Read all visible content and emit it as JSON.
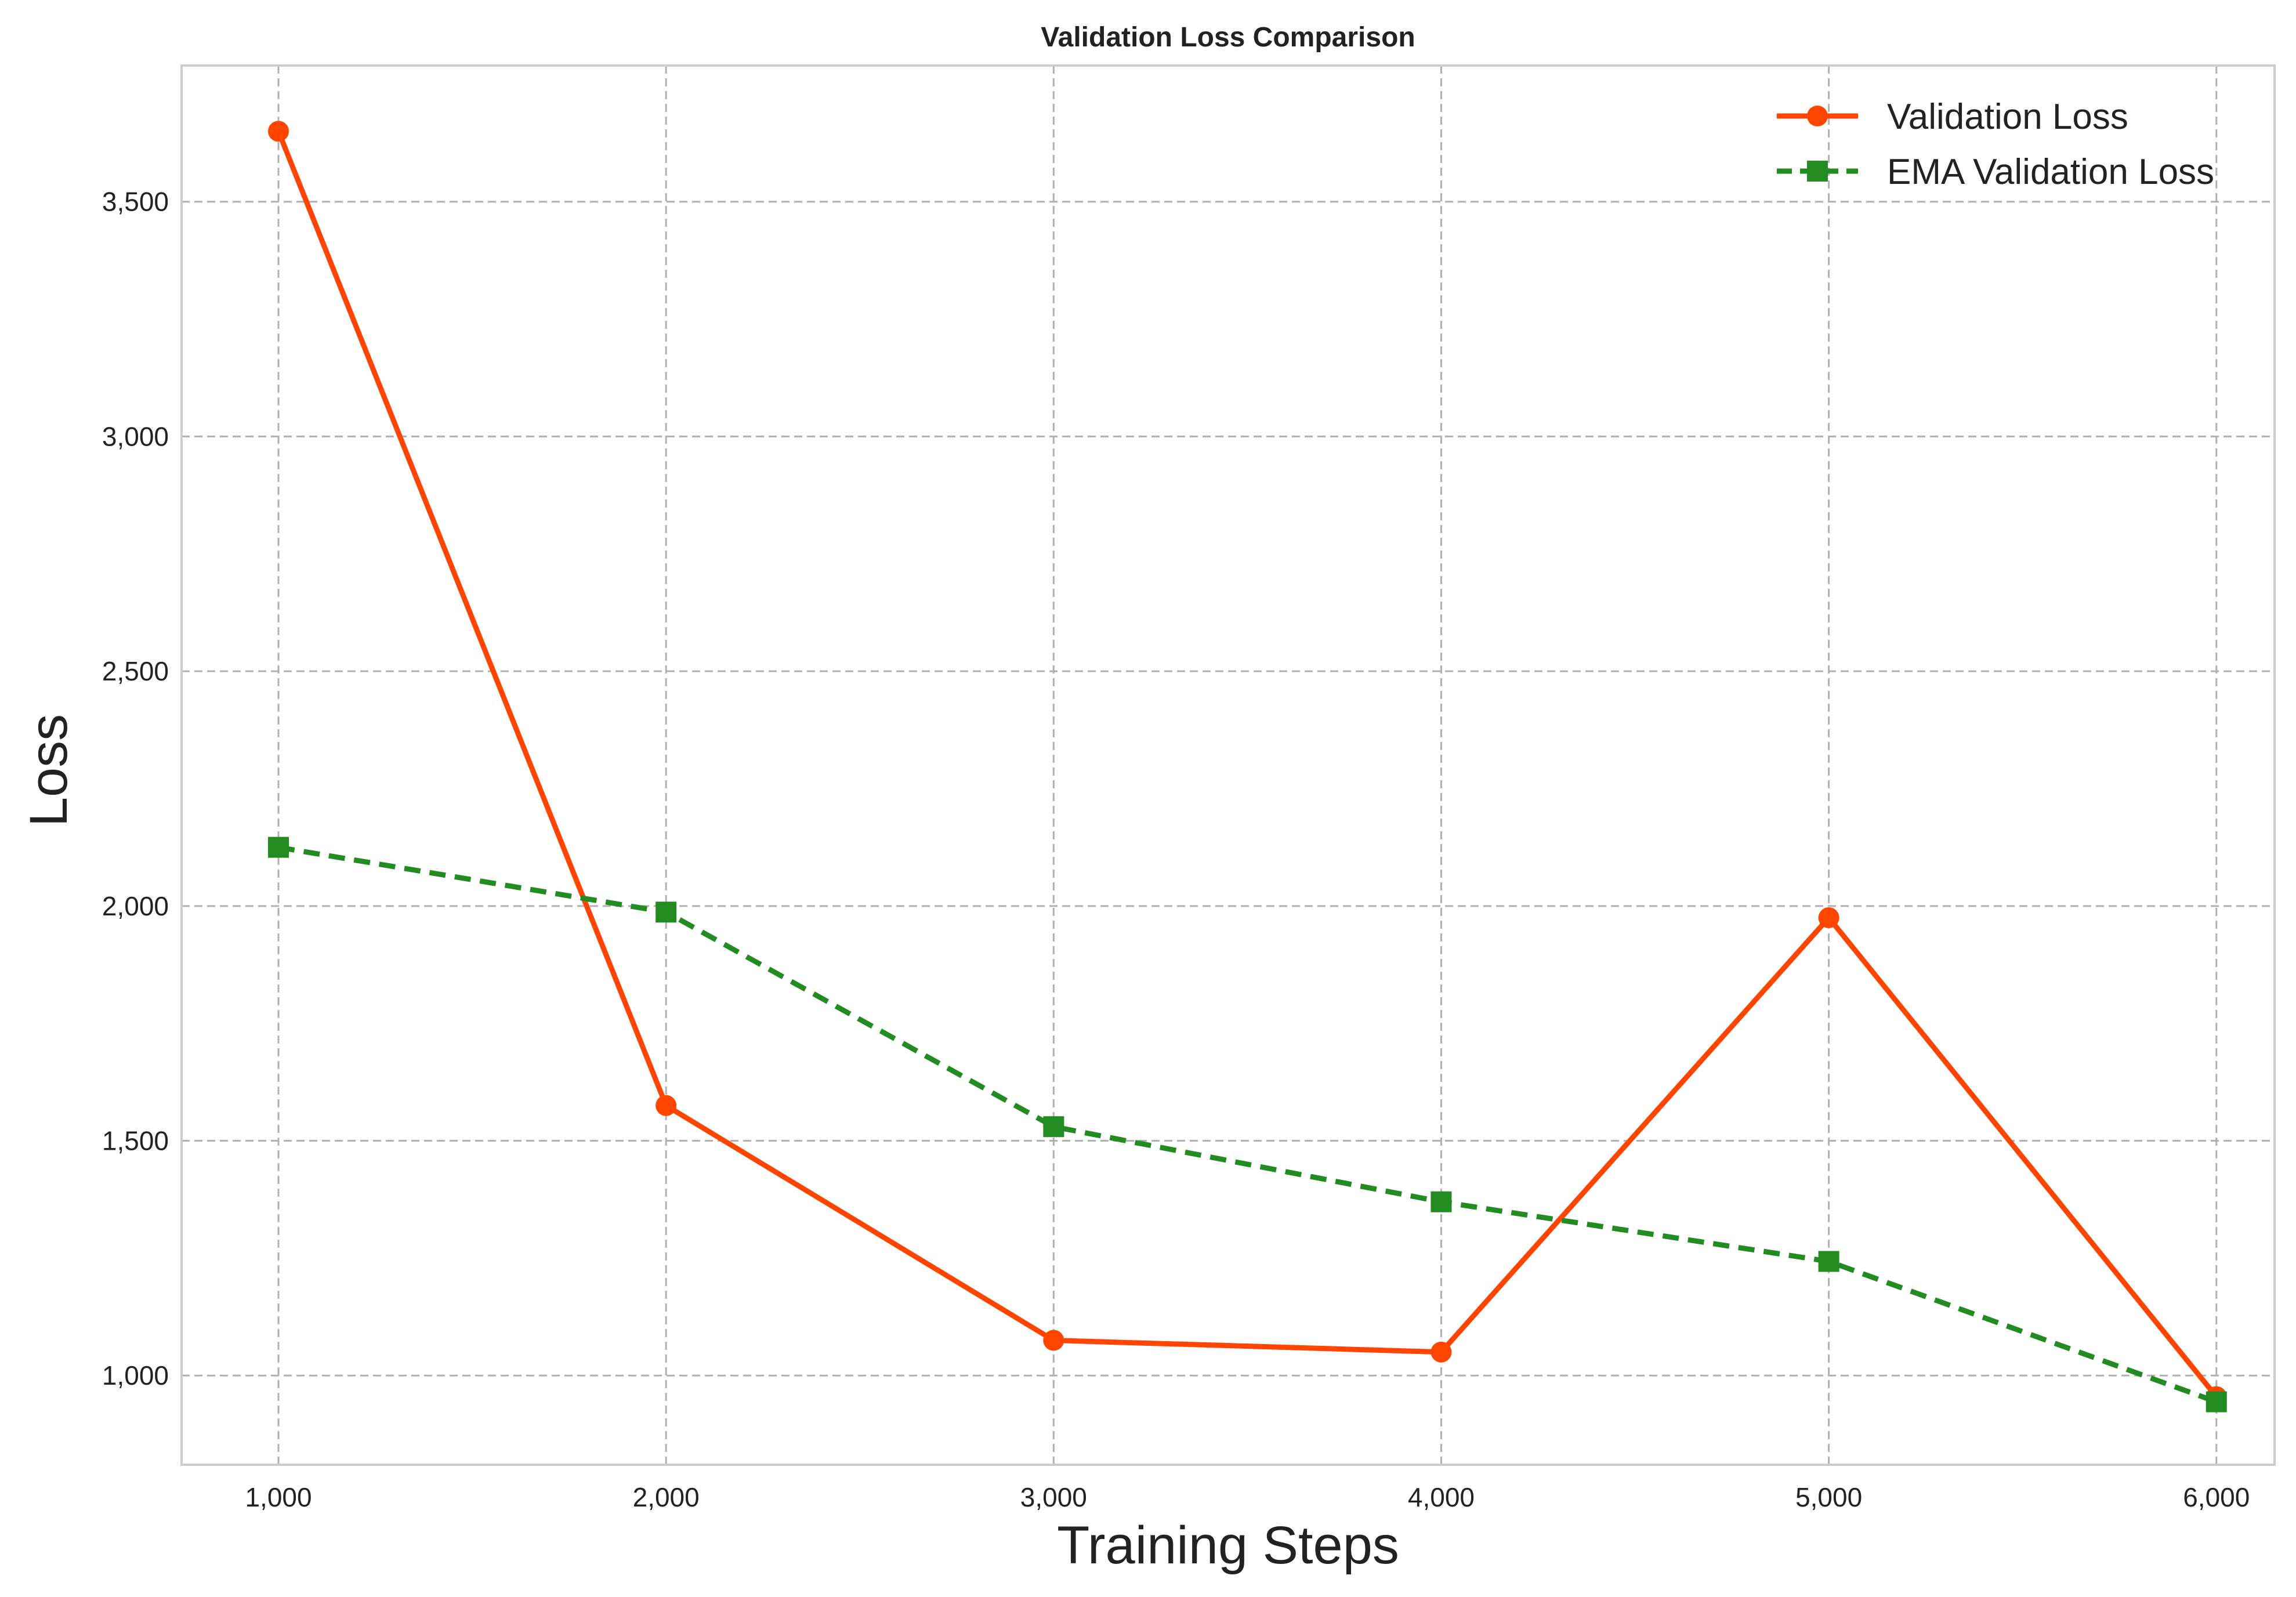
{
  "chart_data": {
    "type": "line",
    "title": "Validation Loss Comparison",
    "xlabel": "Training Steps",
    "ylabel": "Loss",
    "x": [
      1000,
      2000,
      3000,
      4000,
      5000,
      6000
    ],
    "x_tick_labels": [
      "1,000",
      "2,000",
      "3,000",
      "4,000",
      "5,000",
      "6,000"
    ],
    "y_ticks": [
      1000,
      1500,
      2000,
      2500,
      3000,
      3500
    ],
    "y_tick_labels": [
      "1,000",
      "1,500",
      "2,000",
      "2,500",
      "3,000",
      "3,500"
    ],
    "xlim": [
      750,
      6150
    ],
    "ylim": [
      810,
      3790
    ],
    "grid": true,
    "legend_position": "top-right",
    "series": [
      {
        "name": "Validation Loss",
        "values": [
          3650,
          1575,
          1075,
          1050,
          1975,
          955
        ],
        "color": "#ff4500",
        "marker": "circle",
        "line_style": "solid"
      },
      {
        "name": "EMA Validation Loss",
        "values": [
          2125,
          1987,
          1530,
          1370,
          1243,
          944
        ],
        "color": "#228b22",
        "marker": "square",
        "line_style": "dashed"
      }
    ]
  }
}
